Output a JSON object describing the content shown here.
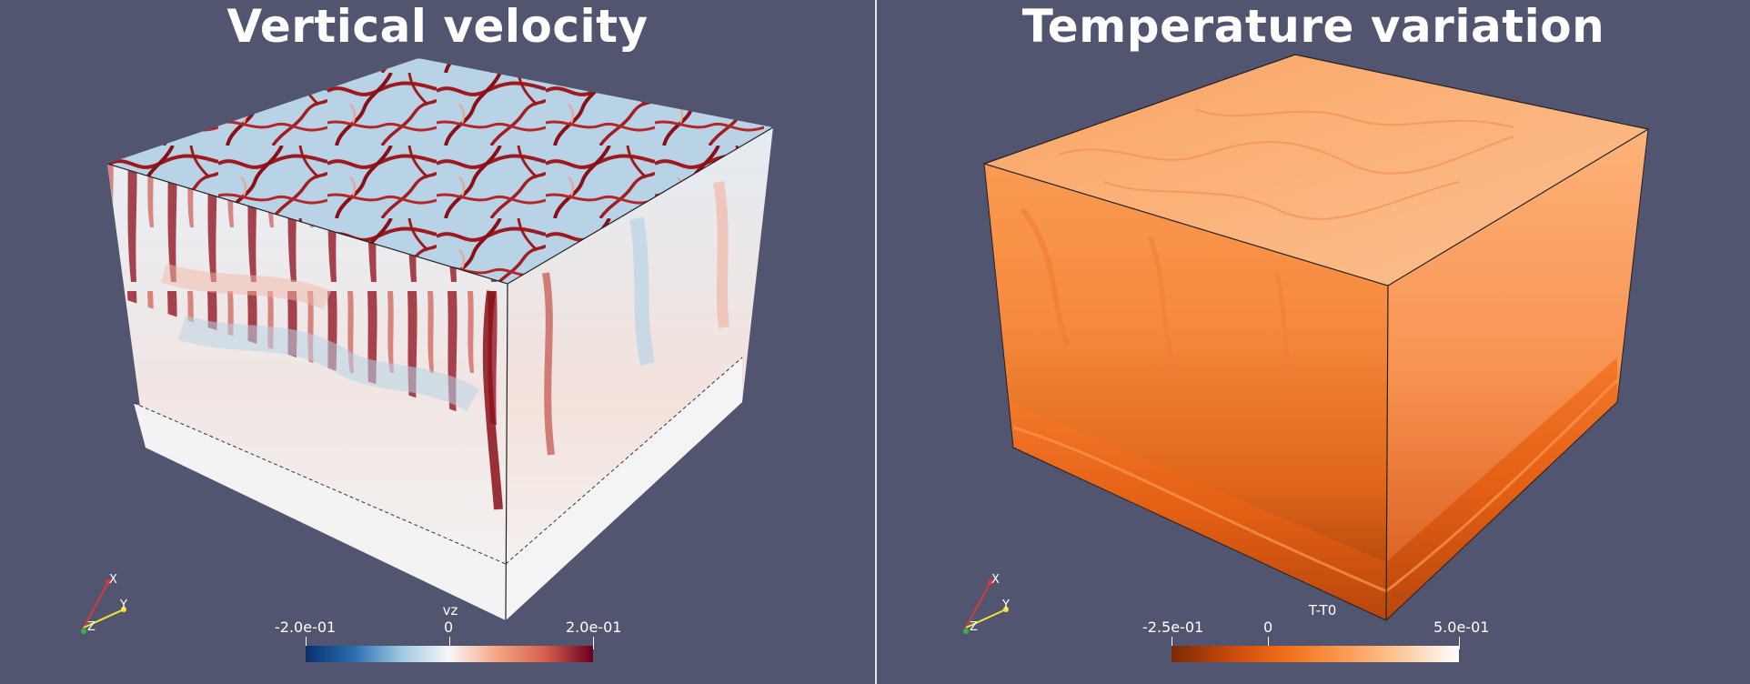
{
  "left_view": {
    "title": "Vertical velocity",
    "colorbar": {
      "title": "vz",
      "min_label": "-2.0e-01",
      "mid_label": "0",
      "max_label": "2.0e-01",
      "colors": [
        "#08306b",
        "#2b6cb0",
        "#9ecae1",
        "#f7f7f7",
        "#f4a582",
        "#d6604d",
        "#67001f"
      ]
    },
    "axes": {
      "x": "X",
      "y": "Y",
      "z": "Z"
    }
  },
  "right_view": {
    "title": "Temperature variation",
    "colorbar": {
      "title": "T-T0",
      "min_label": "-2.5e-01",
      "mid_label": "0",
      "max_label": "5.0e-01",
      "colors": [
        "#7a2a05",
        "#c8480a",
        "#f26f1a",
        "#fa9a52",
        "#fdc99c",
        "#ffffff"
      ]
    },
    "axes": {
      "x": "X",
      "y": "Y",
      "z": "Z"
    }
  },
  "colors": {
    "background": "#525570",
    "divider": "#e6e6ea"
  }
}
